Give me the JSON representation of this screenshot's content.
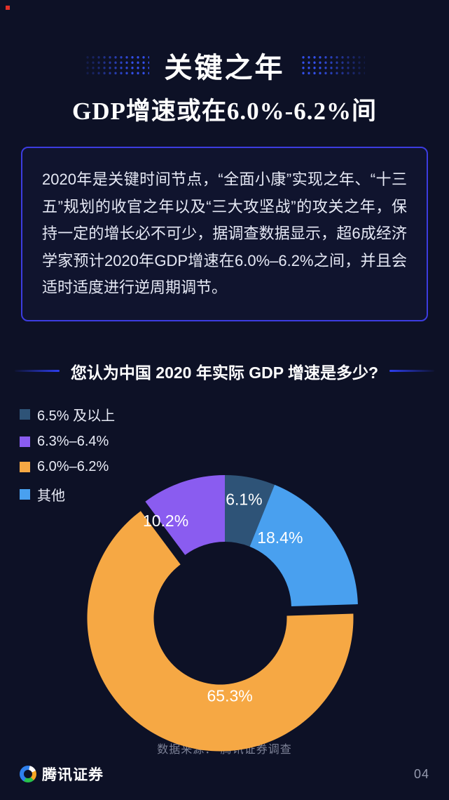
{
  "header": {
    "title_line1": "关键之年",
    "title_line2": "GDP增速或在6.0%-6.2%间"
  },
  "intro": {
    "text": "2020年是关键时间节点，“全面小康”实现之年、“十三五”规划的收官之年以及“三大攻坚战”的攻关之年，保持一定的增长必不可少，据调查数据显示，超6成经济学家预计2020年GDP增速在6.0%–6.2%之间，并且会适时适度进行逆周期调节。"
  },
  "section": {
    "title": "您认为中国 2020 年实际 GDP 增速是多少?"
  },
  "footer": {
    "source": "数据来源： 腾讯证券调查",
    "brand": "腾讯证券",
    "page_number": "04"
  },
  "chart_data": {
    "type": "pie",
    "donut": true,
    "title": "您认为中国 2020 年实际 GDP 增速是多少?",
    "legend_position": "top-left",
    "background": "#0d1126",
    "label_color": "#ffffff",
    "start_angle": 0,
    "unit": "%",
    "legend": [
      {
        "label": "6.5% 及以上",
        "color": "#2e5377"
      },
      {
        "label": "6.3%–6.4%",
        "color": "#8a5cf0"
      },
      {
        "label": "6.0%–6.2%",
        "color": "#f6a844"
      },
      {
        "label": "其他",
        "color": "#49a0ef"
      }
    ],
    "slices": [
      {
        "name": "6.5% 及以上",
        "value": 6.1,
        "display": "6.1%",
        "color": "#2e5377",
        "explode": 0,
        "label_angle": 10,
        "label_radius": 158
      },
      {
        "name": "其他",
        "value": 18.4,
        "display": "18.4%",
        "color": "#49a0ef",
        "explode": 0,
        "label_angle": 38,
        "label_radius": 128
      },
      {
        "name": "6.0%–6.2%",
        "value": 65.3,
        "display": "65.3%",
        "color": "#f6a844",
        "explode": 15,
        "label_angle": 173,
        "label_radius": 112
      },
      {
        "name": "6.3%–6.4%",
        "value": 10.2,
        "display": "10.2%",
        "color": "#8a5cf0",
        "explode": 0,
        "label_angle": 326,
        "label_radius": 151
      }
    ]
  }
}
